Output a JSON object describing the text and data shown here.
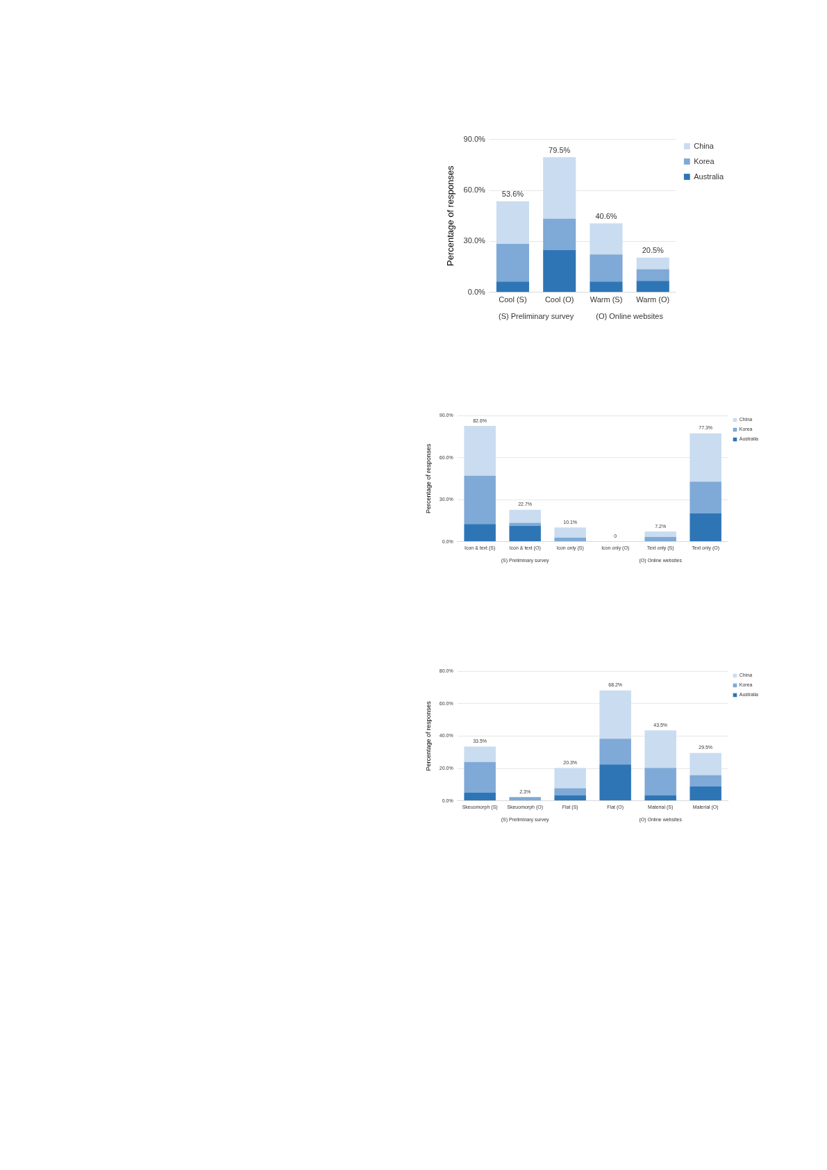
{
  "chart_data": [
    {
      "type": "bar",
      "stacked": true,
      "ylabel": "Percentage of responses",
      "categories": [
        "Cool (S)",
        "Cool (O)",
        "Warm (S)",
        "Warm (O)"
      ],
      "series": [
        {
          "name": "Australia",
          "color": "#2e75b6",
          "values": [
            6.4,
            25.0,
            6.4,
            6.8
          ]
        },
        {
          "name": "Korea",
          "color": "#7fa9d6",
          "values": [
            22.1,
            18.3,
            15.9,
            6.8
          ]
        },
        {
          "name": "China",
          "color": "#c9dcf0",
          "values": [
            25.1,
            36.2,
            18.3,
            6.9
          ]
        }
      ],
      "totals": [
        "53.6%",
        "79.5%",
        "40.6%",
        "20.5%"
      ],
      "ylim": [
        0,
        90
      ],
      "yticks": [
        {
          "value": 0,
          "label": "0.0%"
        },
        {
          "value": 30,
          "label": "30.0%"
        },
        {
          "value": 60,
          "label": "60.0%"
        },
        {
          "value": 90,
          "label": "90.0%"
        }
      ],
      "grid": "y",
      "legend": "top right",
      "annotations": [
        "(S) Preliminary survey",
        "(O) Online websites"
      ]
    },
    {
      "type": "bar",
      "stacked": true,
      "ylabel": "Percentage of responses",
      "categories": [
        "Icon & text (S)",
        "Icon & text (O)",
        "Icon only (S)",
        "Icon only (O)",
        "Text only (S)",
        "Text only (O)"
      ],
      "series": [
        {
          "name": "Australia",
          "color": "#2e75b6",
          "values": [
            12.6,
            11.3,
            0,
            0,
            0.3,
            20.2
          ]
        },
        {
          "name": "Korea",
          "color": "#7fa9d6",
          "values": [
            34.4,
            2.2,
            2.9,
            0,
            3.1,
            22.7
          ]
        },
        {
          "name": "China",
          "color": "#c9dcf0",
          "values": [
            35.6,
            9.2,
            7.2,
            0,
            3.8,
            34.4
          ]
        }
      ],
      "totals": [
        "82.6%",
        "22.7%",
        "10.1%",
        "0",
        "7.2%",
        "77.3%"
      ],
      "ylim": [
        0,
        90
      ],
      "yticks": [
        {
          "value": 0,
          "label": "0.0%"
        },
        {
          "value": 30,
          "label": "30.0%"
        },
        {
          "value": 60,
          "label": "60.0%"
        },
        {
          "value": 90,
          "label": "90.0%"
        }
      ],
      "grid": "y",
      "legend": "top right",
      "annotations": [
        "(S) Preliminary survey",
        "(O) Online websites"
      ]
    },
    {
      "type": "bar",
      "stacked": true,
      "ylabel": "Percentage of responses",
      "categories": [
        "Skeuomorph (S)",
        "Skeuomorph (O)",
        "Flat (S)",
        "Flat (O)",
        "Material (S)",
        "Material (O)"
      ],
      "series": [
        {
          "name": "Australia",
          "color": "#2e75b6",
          "values": [
            5.0,
            0,
            3.5,
            22.5,
            3.5,
            9.0
          ]
        },
        {
          "name": "Korea",
          "color": "#7fa9d6",
          "values": [
            19.0,
            2.3,
            4.3,
            15.8,
            16.8,
            6.8
          ]
        },
        {
          "name": "China",
          "color": "#c9dcf0",
          "values": [
            9.5,
            0,
            12.5,
            29.9,
            23.2,
            13.7
          ]
        }
      ],
      "totals": [
        "33.5%",
        "2.3%",
        "20.3%",
        "68.2%",
        "43.5%",
        "29.5%"
      ],
      "ylim": [
        0,
        80
      ],
      "yticks": [
        {
          "value": 0,
          "label": "0.0%"
        },
        {
          "value": 20,
          "label": "20.0%"
        },
        {
          "value": 40,
          "label": "40.0%"
        },
        {
          "value": 60,
          "label": "60.0%"
        },
        {
          "value": 80,
          "label": "80.0%"
        }
      ],
      "grid": "y",
      "legend": "top right",
      "annotations": [
        "(S) Preliminary survey",
        "(O) Online websites"
      ]
    }
  ]
}
